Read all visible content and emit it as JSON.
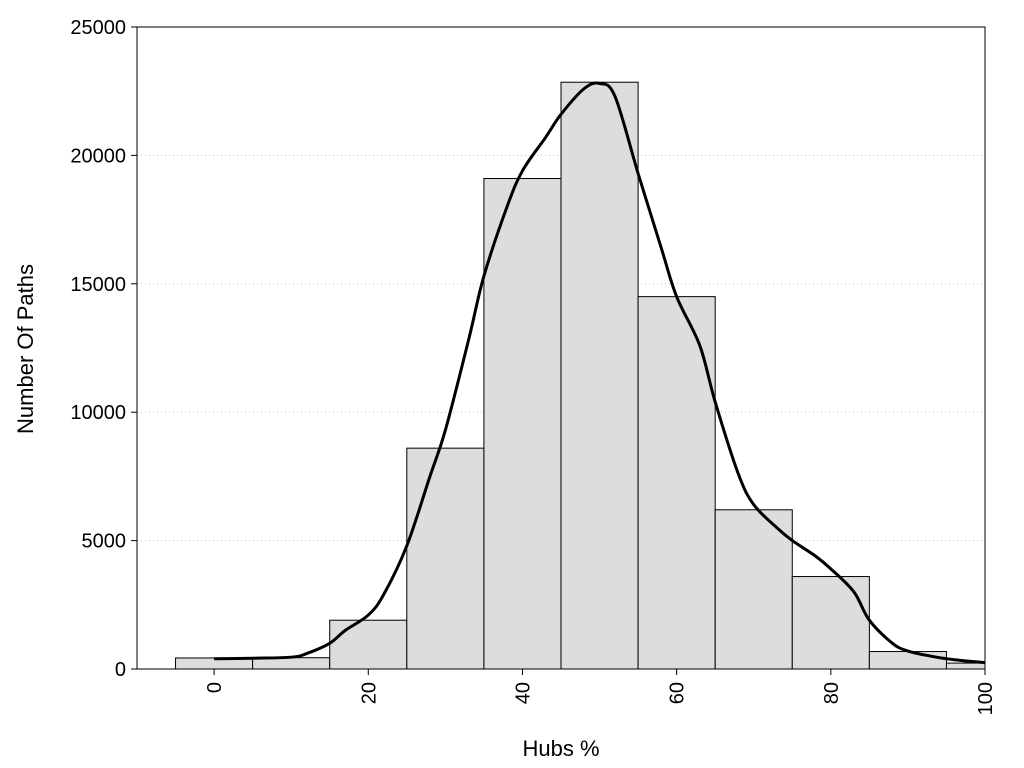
{
  "chart_data": {
    "type": "bar",
    "title": "",
    "xlabel": "Hubs %",
    "ylabel": "Number Of Paths",
    "xlim": [
      -10,
      100
    ],
    "ylim": [
      0,
      25000
    ],
    "x_ticks": [
      0,
      20,
      40,
      60,
      80,
      100
    ],
    "y_ticks": [
      0,
      5000,
      10000,
      15000,
      20000,
      25000
    ],
    "grid": "horizontal dotted",
    "bin_width": 10,
    "bars": [
      {
        "center": 0,
        "value": 430
      },
      {
        "center": 10,
        "value": 440
      },
      {
        "center": 20,
        "value": 1900
      },
      {
        "center": 30,
        "value": 8600
      },
      {
        "center": 40,
        "value": 19100
      },
      {
        "center": 50,
        "value": 22850
      },
      {
        "center": 60,
        "value": 14500
      },
      {
        "center": 70,
        "value": 6200
      },
      {
        "center": 80,
        "value": 3600
      },
      {
        "center": 90,
        "value": 680
      },
      {
        "center": 100,
        "value": 230
      }
    ],
    "density_curve": {
      "x": [
        0,
        5,
        10,
        12,
        15,
        17,
        20,
        22,
        25,
        28,
        30,
        33,
        35,
        38,
        40,
        43,
        45,
        48,
        50,
        52,
        55,
        58,
        60,
        63,
        65,
        68,
        70,
        73,
        75,
        78,
        80,
        83,
        85,
        88,
        90,
        93,
        95,
        98,
        100
      ],
      "y": [
        400,
        420,
        460,
        600,
        1000,
        1500,
        2100,
        2900,
        4800,
        7500,
        9300,
        12800,
        15300,
        18000,
        19400,
        20700,
        21600,
        22600,
        22800,
        22300,
        19300,
        16400,
        14500,
        12600,
        10400,
        7600,
        6400,
        5500,
        5000,
        4400,
        3900,
        3000,
        1900,
        1000,
        700,
        500,
        400,
        300,
        250
      ]
    }
  }
}
